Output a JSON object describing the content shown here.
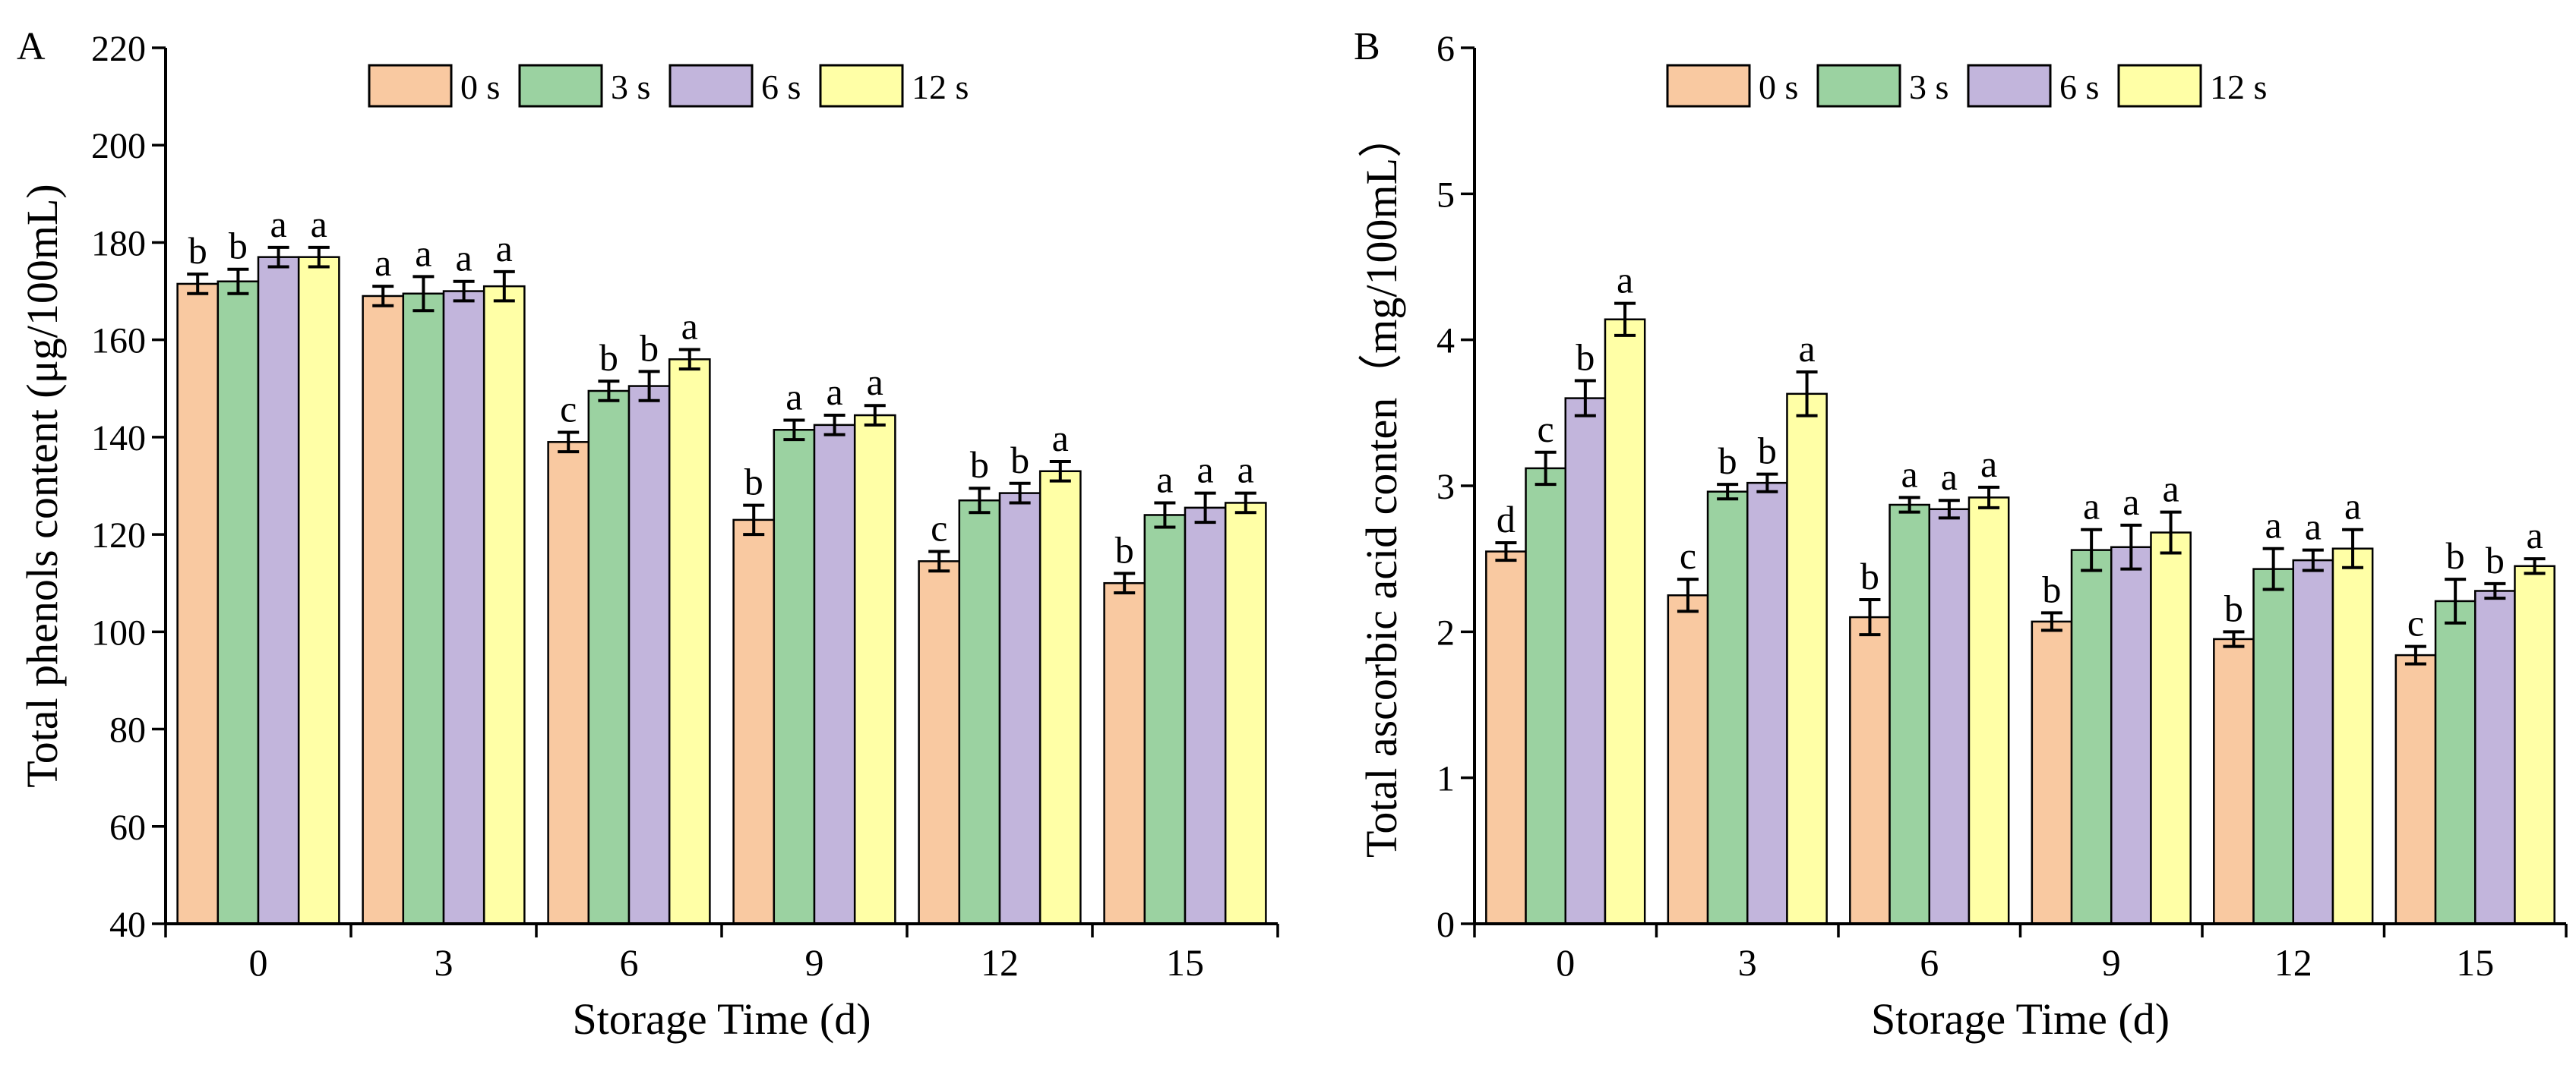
{
  "chart_data": [
    {
      "type": "bar",
      "panel_label": "A",
      "title": "",
      "xlabel": "Storage Time (d)",
      "ylabel": "Total phenols content (μg/100mL)",
      "ylim": [
        40,
        220
      ],
      "yticks": [
        "40",
        "60",
        "80",
        "100",
        "120",
        "140",
        "160",
        "180",
        "200",
        "220"
      ],
      "categories": [
        "0",
        "3",
        "6",
        "9",
        "12",
        "15"
      ],
      "legend_position": "top-center",
      "grid": false,
      "series": [
        {
          "name": "0 s",
          "color": "#F9C9A1",
          "values": [
            171.5,
            169.0,
            139.0,
            123.0,
            114.5,
            110.0
          ],
          "errors": [
            2.0,
            2.0,
            2.0,
            3.0,
            2.0,
            2.0
          ],
          "letters": [
            "b",
            "a",
            "c",
            "b",
            "c",
            "b"
          ]
        },
        {
          "name": "3 s",
          "color": "#9BD2A1",
          "values": [
            172.0,
            169.5,
            149.5,
            141.5,
            127.0,
            124.0
          ],
          "errors": [
            2.5,
            3.5,
            2.0,
            2.0,
            2.5,
            2.5
          ],
          "letters": [
            "b",
            "a",
            "b",
            "a",
            "b",
            "a"
          ]
        },
        {
          "name": "6 s",
          "color": "#C2B5DC",
          "values": [
            177.0,
            170.0,
            150.5,
            142.5,
            128.5,
            125.5
          ],
          "errors": [
            2.0,
            2.0,
            3.0,
            2.0,
            2.0,
            3.0
          ],
          "letters": [
            "a",
            "a",
            "b",
            "a",
            "b",
            "a"
          ]
        },
        {
          "name": "12 s",
          "color": "#FFFFA6",
          "values": [
            177.0,
            171.0,
            156.0,
            144.5,
            133.0,
            126.5
          ],
          "errors": [
            2.0,
            3.0,
            2.0,
            2.0,
            2.0,
            2.0
          ],
          "letters": [
            "a",
            "a",
            "a",
            "a",
            "a",
            "a"
          ]
        }
      ]
    },
    {
      "type": "bar",
      "panel_label": "B",
      "title": "",
      "xlabel": "Storage Time (d)",
      "ylabel": "Total ascorbic acid conten（mg/100mL）",
      "ylim": [
        0,
        6
      ],
      "yticks": [
        "0",
        "1",
        "2",
        "3",
        "4",
        "5",
        "6"
      ],
      "categories": [
        "0",
        "3",
        "6",
        "9",
        "12",
        "15"
      ],
      "legend_position": "top-center",
      "grid": false,
      "series": [
        {
          "name": "0 s",
          "color": "#F9C9A1",
          "values": [
            2.55,
            2.25,
            2.1,
            2.07,
            1.95,
            1.84
          ],
          "errors": [
            0.06,
            0.11,
            0.12,
            0.06,
            0.05,
            0.06
          ],
          "letters": [
            "d",
            "c",
            "b",
            "b",
            "b",
            "c"
          ]
        },
        {
          "name": "3 s",
          "color": "#9BD2A1",
          "values": [
            3.12,
            2.96,
            2.87,
            2.56,
            2.43,
            2.21
          ],
          "errors": [
            0.11,
            0.05,
            0.05,
            0.14,
            0.14,
            0.15
          ],
          "letters": [
            "c",
            "b",
            "a",
            "a",
            "a",
            "b"
          ]
        },
        {
          "name": "6 s",
          "color": "#C2B5DC",
          "values": [
            3.6,
            3.02,
            2.84,
            2.58,
            2.49,
            2.28
          ],
          "errors": [
            0.12,
            0.06,
            0.06,
            0.15,
            0.07,
            0.05
          ],
          "letters": [
            "b",
            "b",
            "a",
            "a",
            "a",
            "b"
          ]
        },
        {
          "name": "12 s",
          "color": "#FFFFA6",
          "values": [
            4.14,
            3.63,
            2.92,
            2.68,
            2.57,
            2.45
          ],
          "errors": [
            0.11,
            0.15,
            0.07,
            0.14,
            0.13,
            0.05
          ],
          "letters": [
            "a",
            "a",
            "a",
            "a",
            "a",
            "a"
          ]
        }
      ]
    }
  ]
}
